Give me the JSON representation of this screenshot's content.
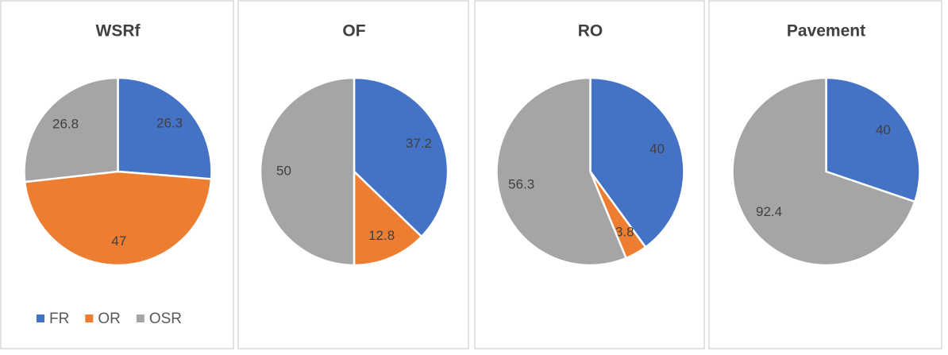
{
  "chart_data": [
    {
      "type": "pie",
      "title": "WSRf",
      "categories": [
        "FR",
        "OR",
        "OSR"
      ],
      "values": [
        26.3,
        47,
        26.8
      ],
      "colors": [
        "#4472c4",
        "#ed7d31",
        "#a5a5a5"
      ],
      "legend": "bottom"
    },
    {
      "type": "pie",
      "title": "OF",
      "categories": [
        "FR",
        "OR",
        "OSR"
      ],
      "values": [
        37.2,
        12.8,
        50
      ],
      "colors": [
        "#4472c4",
        "#ed7d31",
        "#a5a5a5"
      ]
    },
    {
      "type": "pie",
      "title": "RO",
      "categories": [
        "FR",
        "OR",
        "OSR"
      ],
      "values": [
        40,
        3.8,
        56.3
      ],
      "colors": [
        "#4472c4",
        "#ed7d31",
        "#a5a5a5"
      ]
    },
    {
      "type": "pie",
      "title": "Pavement",
      "categories": [
        "FR",
        "OR",
        "OSR"
      ],
      "values": [
        40,
        null,
        92.4
      ],
      "colors": [
        "#4472c4",
        "#ed7d31",
        "#a5a5a5"
      ]
    }
  ]
}
